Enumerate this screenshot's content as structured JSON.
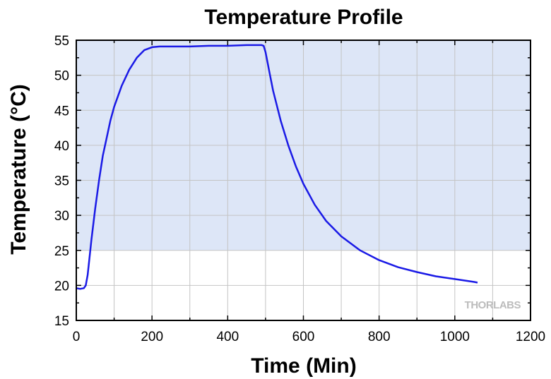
{
  "chart_data": {
    "type": "line",
    "title": "Temperature Profile",
    "xlabel": "Time (Min)",
    "ylabel": "Temperature (°C)",
    "xlim": [
      0,
      1200
    ],
    "ylim": [
      15,
      55
    ],
    "x_ticks": [
      "0",
      "200",
      "400",
      "600",
      "800",
      "1000",
      "1200"
    ],
    "y_ticks": [
      "15",
      "20",
      "25",
      "30",
      "35",
      "40",
      "45",
      "50",
      "55"
    ],
    "shaded_band": {
      "y_from": 25,
      "y_to": 55,
      "color": "#dde6f7"
    },
    "grid": true,
    "line_color": "#1a1ae6",
    "series": [
      {
        "x": [
          0,
          10,
          20,
          25,
          30,
          40,
          50,
          60,
          70,
          80,
          90,
          100,
          120,
          140,
          160,
          180,
          200,
          220,
          250,
          300,
          350,
          400,
          450,
          480,
          490,
          495,
          500,
          510,
          520,
          540,
          560,
          580,
          600,
          630,
          660,
          700,
          750,
          800,
          850,
          900,
          950,
          1000,
          1050,
          1060
        ],
        "y": [
          19.6,
          19.5,
          19.6,
          20.0,
          21.5,
          26.5,
          31.0,
          35.0,
          38.5,
          41.0,
          43.5,
          45.5,
          48.5,
          50.8,
          52.5,
          53.6,
          54.0,
          54.1,
          54.1,
          54.1,
          54.2,
          54.2,
          54.3,
          54.3,
          54.3,
          54.2,
          53.3,
          50.5,
          47.8,
          43.5,
          40.0,
          37.0,
          34.5,
          31.5,
          29.2,
          27.0,
          25.0,
          23.6,
          22.6,
          21.9,
          21.3,
          20.9,
          20.5,
          20.4
        ]
      }
    ]
  },
  "watermark": "THORLABS"
}
